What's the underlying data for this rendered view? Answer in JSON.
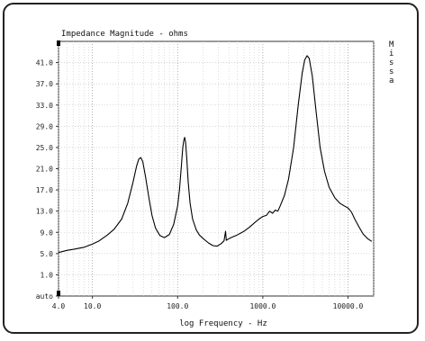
{
  "chart_data": {
    "type": "line",
    "title": "Impedance Magnitude - ohms",
    "xlabel": "log Frequency - Hz",
    "ylabel": "",
    "side_label": "M i s s a",
    "x_scale": "log",
    "xlim": [
      4,
      20000
    ],
    "ylim": [
      -3,
      45
    ],
    "grid": true,
    "x_ticks": [
      {
        "value": 4,
        "label": "4.0"
      },
      {
        "value": 10,
        "label": "10.0"
      },
      {
        "value": 100,
        "label": "100.0"
      },
      {
        "value": 1000,
        "label": "1000.0"
      },
      {
        "value": 10000,
        "label": "10000.0"
      }
    ],
    "y_ticks": [
      {
        "value": -3,
        "label": "auto"
      },
      {
        "value": 1,
        "label": "1.0"
      },
      {
        "value": 5,
        "label": "5.0"
      },
      {
        "value": 9,
        "label": "9.0"
      },
      {
        "value": 13,
        "label": "13.0"
      },
      {
        "value": 17,
        "label": "17.0"
      },
      {
        "value": 21,
        "label": "21.0"
      },
      {
        "value": 25,
        "label": "25.0"
      },
      {
        "value": 29,
        "label": "29.0"
      },
      {
        "value": 33,
        "label": "33.0"
      },
      {
        "value": 37,
        "label": "37.0"
      },
      {
        "value": 41,
        "label": "41.0"
      }
    ],
    "series": [
      {
        "color": "#000000",
        "points": [
          [
            4,
            5.2
          ],
          [
            5,
            5.6
          ],
          [
            6,
            5.8
          ],
          [
            8,
            6.2
          ],
          [
            10,
            6.8
          ],
          [
            12,
            7.4
          ],
          [
            15,
            8.5
          ],
          [
            18,
            9.6
          ],
          [
            22,
            11.5
          ],
          [
            26,
            14.5
          ],
          [
            30,
            18.5
          ],
          [
            33,
            21.5
          ],
          [
            35,
            22.8
          ],
          [
            37,
            23.1
          ],
          [
            39,
            22.3
          ],
          [
            42,
            19.5
          ],
          [
            46,
            15.5
          ],
          [
            50,
            12.2
          ],
          [
            55,
            9.8
          ],
          [
            62,
            8.4
          ],
          [
            70,
            8.0
          ],
          [
            80,
            8.6
          ],
          [
            90,
            10.5
          ],
          [
            100,
            14.0
          ],
          [
            105,
            17.0
          ],
          [
            110,
            21.0
          ],
          [
            115,
            25.0
          ],
          [
            118,
            26.3
          ],
          [
            121,
            26.9
          ],
          [
            124,
            26.0
          ],
          [
            128,
            23.0
          ],
          [
            133,
            18.5
          ],
          [
            140,
            14.5
          ],
          [
            150,
            11.5
          ],
          [
            165,
            9.5
          ],
          [
            180,
            8.5
          ],
          [
            200,
            7.8
          ],
          [
            230,
            7.0
          ],
          [
            260,
            6.5
          ],
          [
            290,
            6.4
          ],
          [
            320,
            6.8
          ],
          [
            350,
            7.4
          ],
          [
            365,
            9.2
          ],
          [
            372,
            7.5
          ],
          [
            400,
            7.8
          ],
          [
            450,
            8.2
          ],
          [
            500,
            8.5
          ],
          [
            600,
            9.2
          ],
          [
            700,
            10.0
          ],
          [
            800,
            10.8
          ],
          [
            900,
            11.5
          ],
          [
            1000,
            12.0
          ],
          [
            1100,
            12.2
          ],
          [
            1200,
            13.0
          ],
          [
            1300,
            12.6
          ],
          [
            1400,
            13.2
          ],
          [
            1500,
            13.0
          ],
          [
            1600,
            14.0
          ],
          [
            1800,
            16.0
          ],
          [
            2000,
            19.0
          ],
          [
            2300,
            25.0
          ],
          [
            2600,
            33.0
          ],
          [
            2900,
            39.0
          ],
          [
            3100,
            41.5
          ],
          [
            3300,
            42.3
          ],
          [
            3500,
            41.8
          ],
          [
            3800,
            38.5
          ],
          [
            4200,
            32.0
          ],
          [
            4700,
            25.0
          ],
          [
            5300,
            20.5
          ],
          [
            6000,
            17.5
          ],
          [
            7000,
            15.5
          ],
          [
            8000,
            14.5
          ],
          [
            9000,
            14.0
          ],
          [
            10000,
            13.6
          ],
          [
            11000,
            12.8
          ],
          [
            12000,
            11.5
          ],
          [
            13500,
            10.0
          ],
          [
            15000,
            8.7
          ],
          [
            17000,
            7.8
          ],
          [
            19000,
            7.3
          ]
        ]
      }
    ]
  }
}
